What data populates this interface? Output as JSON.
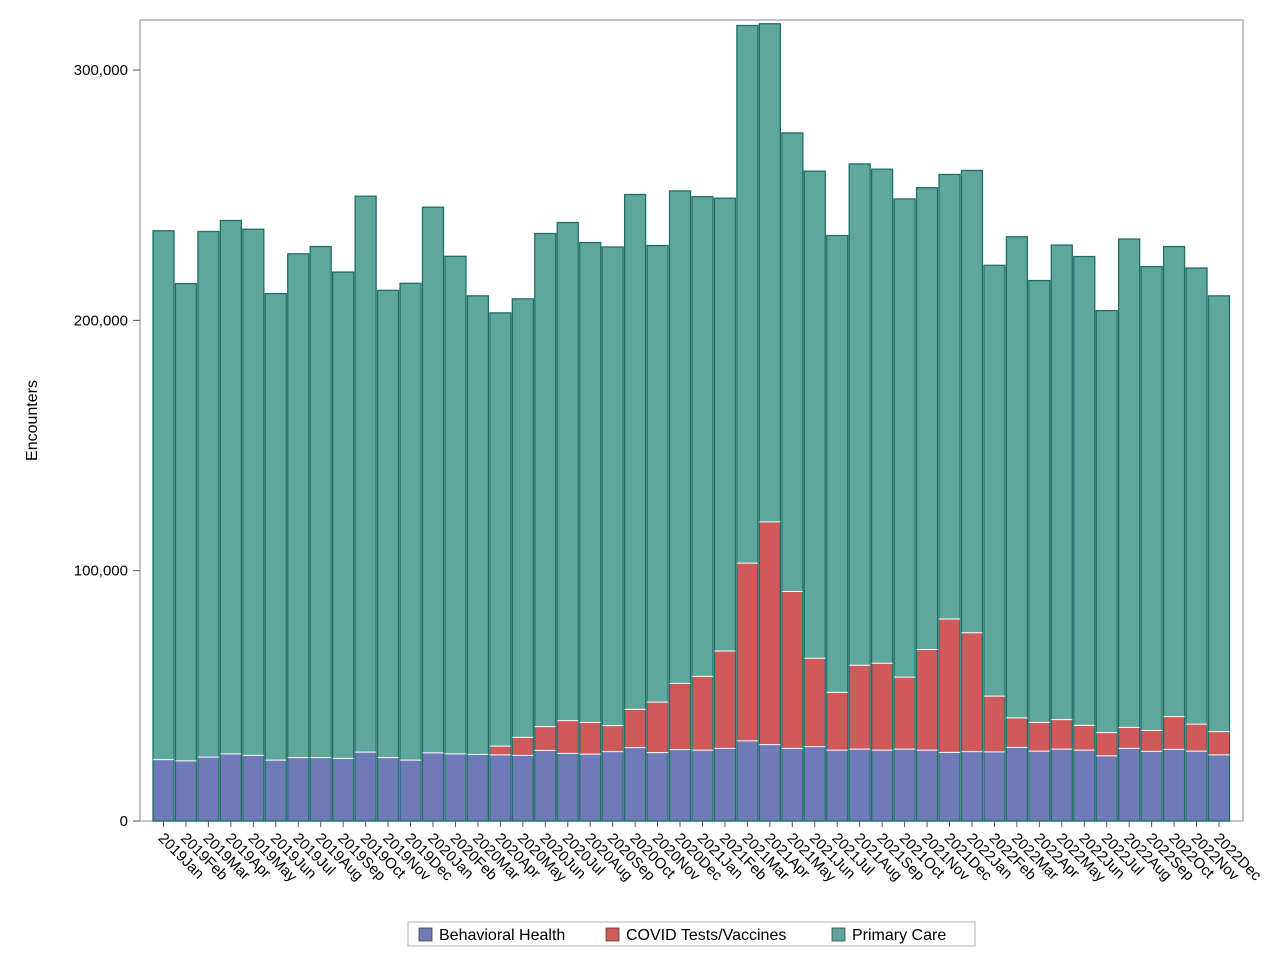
{
  "chart_data": {
    "type": "bar",
    "stacked": true,
    "ylabel": "Encounters",
    "xlabel": "",
    "ylim": [
      0,
      320000
    ],
    "yticks": [
      0,
      100000,
      200000,
      300000
    ],
    "ytick_labels": [
      "0",
      "100,000",
      "200,000",
      "300,000"
    ],
    "grid": false,
    "legend_position": "bottom",
    "categories": [
      "2019Jan",
      "2019Feb",
      "2019Mar",
      "2019Apr",
      "2019May",
      "2019Jun",
      "2019Jul",
      "2019Aug",
      "2019Sep",
      "2019Oct",
      "2019Nov",
      "2019Dec",
      "2020Jan",
      "2020Feb",
      "2020Mar",
      "2020Apr",
      "2020May",
      "2020Jun",
      "2020Jul",
      "2020Aug",
      "2020Sep",
      "2020Oct",
      "2020Nov",
      "2020Dec",
      "2021Jan",
      "2021Feb",
      "2021Mar",
      "2021Apr",
      "2021May",
      "2021Jun",
      "2021Jul",
      "2021Aug",
      "2021Sep",
      "2021Oct",
      "2021Nov",
      "2021Dec",
      "2022Jan",
      "2022Feb",
      "2022Mar",
      "2022Apr",
      "2022May",
      "2022Jun",
      "2022Jul",
      "2022Aug",
      "2022Sep",
      "2022Oct",
      "2022Nov",
      "2022Dec"
    ],
    "series": [
      {
        "name": "Behavioral Health",
        "color": "#6f7ab8",
        "values": [
          24500,
          24000,
          25500,
          26800,
          26200,
          24300,
          25300,
          25300,
          25000,
          27500,
          25300,
          24300,
          27200,
          26800,
          26600,
          26400,
          26200,
          28200,
          27000,
          26700,
          27700,
          29300,
          27300,
          28500,
          28300,
          29000,
          32000,
          30500,
          29000,
          29700,
          28300,
          28700,
          28300,
          28700,
          28300,
          27400,
          27700,
          27600,
          29400,
          27900,
          28700,
          28300,
          26000,
          29000,
          27800,
          28600,
          27900,
          26400
        ]
      },
      {
        "name": "COVID Tests/Vaccines",
        "color": "#d05a5a",
        "values": [
          0,
          0,
          0,
          0,
          0,
          0,
          0,
          0,
          0,
          0,
          0,
          0,
          0,
          0,
          0,
          3500,
          7200,
          9500,
          13100,
          12700,
          10400,
          15300,
          20200,
          26500,
          29500,
          38900,
          71000,
          89000,
          62700,
          35300,
          23100,
          33500,
          34700,
          28800,
          40200,
          53300,
          47500,
          22300,
          11800,
          11500,
          11800,
          9900,
          9300,
          8400,
          8400,
          13100,
          10800,
          9300
        ]
      },
      {
        "name": "Primary Care",
        "color": "#5fa79d",
        "values": [
          211300,
          190700,
          210000,
          213100,
          210200,
          186400,
          201300,
          204200,
          194300,
          222100,
          186700,
          190500,
          218000,
          198800,
          183200,
          173100,
          175200,
          197000,
          199000,
          191700,
          191200,
          205700,
          182400,
          196700,
          191600,
          180900,
          214800,
          199000,
          183200,
          194600,
          182500,
          200300,
          197400,
          191000,
          184500,
          177600,
          184700,
          172100,
          192200,
          176500,
          189600,
          187300,
          168600,
          195100,
          185300,
          187800,
          182200,
          174100
        ]
      }
    ]
  }
}
